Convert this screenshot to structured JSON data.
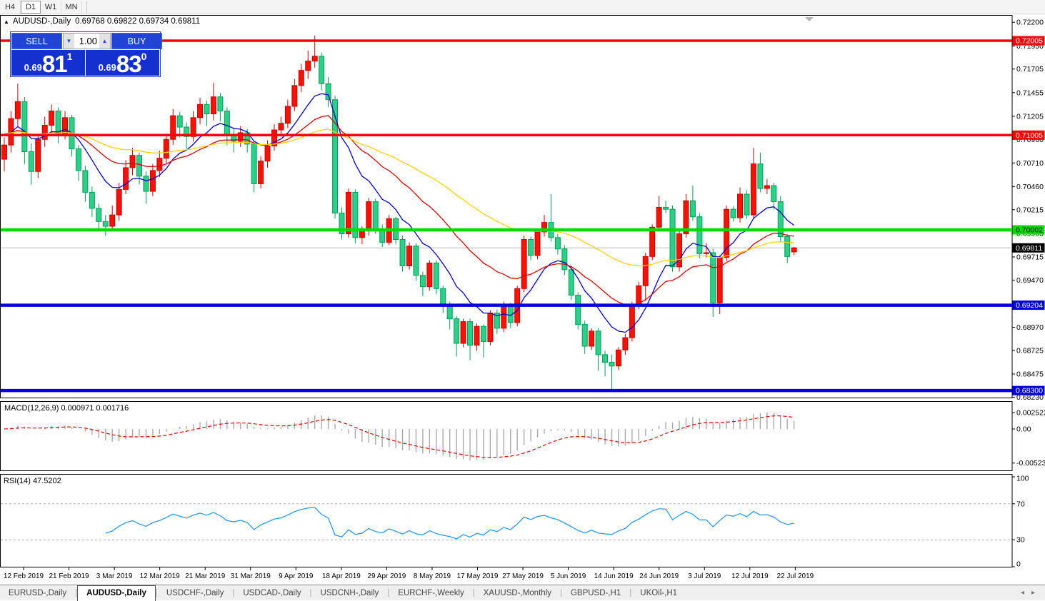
{
  "toolbar": {
    "timeframes": [
      {
        "label": "H4",
        "active": false
      },
      {
        "label": "D1",
        "active": true
      },
      {
        "label": "W1",
        "active": false
      },
      {
        "label": "MN",
        "active": false
      }
    ]
  },
  "header": {
    "collapse_icon": "▲",
    "symbol": "AUDUSD-,Daily",
    "ohlc_text": "0.69768 0.69822 0.69734 0.69811"
  },
  "trade_panel": {
    "sell_label": "SELL",
    "buy_label": "BUY",
    "volume": "1.00",
    "sell_price": {
      "small": "0.69",
      "big": "81",
      "sup": "1"
    },
    "buy_price": {
      "small": "0.69",
      "big": "83",
      "sup": "0"
    }
  },
  "colors": {
    "up_candle": "#f21507",
    "up_border": "#c80000",
    "down_candle": "#2ecf8b",
    "down_border": "#009e55",
    "ma_fast": "#0000cd",
    "ma_mid": "#d80000",
    "ma_slow": "#ffd300",
    "level_red": "#ff0000",
    "level_green": "#00dc00",
    "level_blue": "#0000e6",
    "bid_line": "#bbbbbb",
    "macd_bar": "#a9a9a9",
    "macd_signal": "#e00000",
    "rsi_line": "#1e90ff"
  },
  "chart_data": {
    "type": "candlestick",
    "symbol": "AUDUSD",
    "timeframe": "Daily",
    "price_axis_ticks": [
      "0.72200",
      "0.71950",
      "0.71705",
      "0.71455",
      "0.71205",
      "0.70960",
      "0.70710",
      "0.70460",
      "0.70215",
      "0.69965",
      "0.69715",
      "0.69470",
      "0.68970",
      "0.68725",
      "0.68475",
      "0.68230"
    ],
    "levels": [
      {
        "price": "0.72005",
        "value": 0.72005,
        "color": "red"
      },
      {
        "price": "0.71005",
        "value": 0.71005,
        "color": "red"
      },
      {
        "price": "0.70002",
        "value": 0.70002,
        "color": "green"
      },
      {
        "price": "0.69204",
        "value": 0.69204,
        "color": "blue"
      },
      {
        "price": "0.68300",
        "value": 0.683,
        "color": "blue"
      }
    ],
    "bid": {
      "price": "0.69811",
      "value": 0.69811
    },
    "date_ticks": [
      "12 Feb 2019",
      "21 Feb 2019",
      "3 Mar 2019",
      "12 Mar 2019",
      "21 Mar 2019",
      "31 Mar 2019",
      "9 Apr 2019",
      "18 Apr 2019",
      "29 Apr 2019",
      "8 May 2019",
      "17 May 2019",
      "27 May 2019",
      "5 Jun 2019",
      "14 Jun 2019",
      "24 Jun 2019",
      "3 Jul 2019",
      "12 Jul 2019",
      "22 Jul 2019"
    ],
    "moving_averages": [
      {
        "name": "fast",
        "period": 10,
        "method": "ema"
      },
      {
        "name": "mid",
        "period": 25,
        "method": "ema"
      },
      {
        "name": "slow",
        "period": 55,
        "method": "ema"
      }
    ],
    "candles": [
      [
        0.7075,
        0.7098,
        0.7062,
        0.709
      ],
      [
        0.709,
        0.7126,
        0.7082,
        0.7118
      ],
      [
        0.7118,
        0.7155,
        0.711,
        0.7136
      ],
      [
        0.7136,
        0.7141,
        0.707,
        0.7083
      ],
      [
        0.7083,
        0.7092,
        0.7048,
        0.7062
      ],
      [
        0.7062,
        0.7101,
        0.7055,
        0.7096
      ],
      [
        0.7096,
        0.712,
        0.7088,
        0.7111
      ],
      [
        0.7111,
        0.7133,
        0.7102,
        0.7126
      ],
      [
        0.7126,
        0.713,
        0.7092,
        0.7102
      ],
      [
        0.7102,
        0.7126,
        0.7096,
        0.7119
      ],
      [
        0.7119,
        0.7122,
        0.7078,
        0.7086
      ],
      [
        0.7086,
        0.709,
        0.7052,
        0.7063
      ],
      [
        0.7063,
        0.7068,
        0.703,
        0.704
      ],
      [
        0.704,
        0.7046,
        0.7014,
        0.7023
      ],
      [
        0.7023,
        0.7028,
        0.7,
        0.7009
      ],
      [
        0.7009,
        0.7016,
        0.6994,
        0.7004
      ],
      [
        0.7004,
        0.7026,
        0.6999,
        0.7016
      ],
      [
        0.7016,
        0.705,
        0.701,
        0.7043
      ],
      [
        0.7043,
        0.7074,
        0.7038,
        0.7066
      ],
      [
        0.7066,
        0.7087,
        0.7058,
        0.7079
      ],
      [
        0.7079,
        0.7082,
        0.7048,
        0.7057
      ],
      [
        0.7057,
        0.7062,
        0.7028,
        0.7041
      ],
      [
        0.7041,
        0.707,
        0.7036,
        0.7063
      ],
      [
        0.7063,
        0.7084,
        0.7056,
        0.7076
      ],
      [
        0.7076,
        0.7102,
        0.707,
        0.7096
      ],
      [
        0.7096,
        0.7128,
        0.709,
        0.7121
      ],
      [
        0.7121,
        0.7125,
        0.7098,
        0.7109
      ],
      [
        0.7109,
        0.7114,
        0.7086,
        0.7099
      ],
      [
        0.7099,
        0.7126,
        0.7094,
        0.7119
      ],
      [
        0.7119,
        0.714,
        0.7112,
        0.7133
      ],
      [
        0.7133,
        0.7137,
        0.711,
        0.7123
      ],
      [
        0.7123,
        0.7156,
        0.7116,
        0.7141
      ],
      [
        0.7141,
        0.7145,
        0.7115,
        0.7126
      ],
      [
        0.7126,
        0.713,
        0.709,
        0.7101
      ],
      [
        0.7101,
        0.7108,
        0.7082,
        0.7094
      ],
      [
        0.7094,
        0.711,
        0.7088,
        0.7103
      ],
      [
        0.7103,
        0.7107,
        0.7082,
        0.7091
      ],
      [
        0.7091,
        0.7094,
        0.704,
        0.7049
      ],
      [
        0.7049,
        0.7078,
        0.7044,
        0.7073
      ],
      [
        0.7073,
        0.7095,
        0.7066,
        0.7089
      ],
      [
        0.7089,
        0.7112,
        0.7084,
        0.7106
      ],
      [
        0.7106,
        0.712,
        0.7099,
        0.7113
      ],
      [
        0.7113,
        0.7138,
        0.7108,
        0.7131
      ],
      [
        0.7131,
        0.716,
        0.7126,
        0.7153
      ],
      [
        0.7153,
        0.7176,
        0.7146,
        0.7169
      ],
      [
        0.7169,
        0.719,
        0.716,
        0.7179
      ],
      [
        0.7179,
        0.7206,
        0.7172,
        0.7184
      ],
      [
        0.7184,
        0.7188,
        0.7148,
        0.7155
      ],
      [
        0.7155,
        0.7162,
        0.713,
        0.7138
      ],
      [
        0.7138,
        0.7142,
        0.7012,
        0.7018
      ],
      [
        0.7018,
        0.7024,
        0.699,
        0.6996
      ],
      [
        0.6996,
        0.7044,
        0.6992,
        0.704
      ],
      [
        0.704,
        0.7043,
        0.6986,
        0.6992
      ],
      [
        0.6992,
        0.7004,
        0.6985,
        0.6999
      ],
      [
        0.6999,
        0.7034,
        0.6994,
        0.703
      ],
      [
        0.703,
        0.7033,
        0.6996,
        0.7
      ],
      [
        0.7,
        0.7006,
        0.6982,
        0.6987
      ],
      [
        0.6987,
        0.7016,
        0.6984,
        0.7012
      ],
      [
        0.7012,
        0.7014,
        0.6985,
        0.699
      ],
      [
        0.699,
        0.6994,
        0.6956,
        0.6962
      ],
      [
        0.6962,
        0.6987,
        0.6958,
        0.6983
      ],
      [
        0.6983,
        0.6986,
        0.6946,
        0.6952
      ],
      [
        0.6952,
        0.6956,
        0.693,
        0.694
      ],
      [
        0.694,
        0.6968,
        0.6936,
        0.6965
      ],
      [
        0.6965,
        0.6968,
        0.6932,
        0.6938
      ],
      [
        0.6938,
        0.6941,
        0.6912,
        0.692
      ],
      [
        0.692,
        0.6924,
        0.6895,
        0.6906
      ],
      [
        0.6906,
        0.6909,
        0.6866,
        0.688
      ],
      [
        0.688,
        0.6906,
        0.6876,
        0.6903
      ],
      [
        0.6903,
        0.6906,
        0.6862,
        0.6878
      ],
      [
        0.6878,
        0.6901,
        0.6872,
        0.6898
      ],
      [
        0.6898,
        0.69,
        0.6865,
        0.6882
      ],
      [
        0.6882,
        0.6915,
        0.6878,
        0.6912
      ],
      [
        0.6912,
        0.6916,
        0.689,
        0.6896
      ],
      [
        0.6896,
        0.6924,
        0.6892,
        0.692
      ],
      [
        0.692,
        0.6923,
        0.6896,
        0.6902
      ],
      [
        0.6902,
        0.6941,
        0.6898,
        0.6938
      ],
      [
        0.6938,
        0.6994,
        0.6934,
        0.699
      ],
      [
        0.699,
        0.6993,
        0.6968,
        0.6973
      ],
      [
        0.6973,
        0.7001,
        0.6969,
        0.6998
      ],
      [
        0.6998,
        0.7016,
        0.6993,
        0.7008
      ],
      [
        0.7008,
        0.7038,
        0.6988,
        0.6992
      ],
      [
        0.6992,
        0.6996,
        0.6974,
        0.698
      ],
      [
        0.698,
        0.6984,
        0.6952,
        0.6958
      ],
      [
        0.6958,
        0.6962,
        0.6926,
        0.6931
      ],
      [
        0.6931,
        0.6934,
        0.6895,
        0.69
      ],
      [
        0.69,
        0.6904,
        0.6869,
        0.6877
      ],
      [
        0.6877,
        0.6896,
        0.6873,
        0.6893
      ],
      [
        0.6893,
        0.6896,
        0.6851,
        0.6868
      ],
      [
        0.6868,
        0.6872,
        0.6845,
        0.686
      ],
      [
        0.686,
        0.6868,
        0.683,
        0.6856
      ],
      [
        0.6856,
        0.6876,
        0.6852,
        0.6873
      ],
      [
        0.6873,
        0.689,
        0.6868,
        0.6886
      ],
      [
        0.6886,
        0.6924,
        0.6882,
        0.692
      ],
      [
        0.692,
        0.6945,
        0.6916,
        0.6941
      ],
      [
        0.6941,
        0.6976,
        0.6925,
        0.6972
      ],
      [
        0.6972,
        0.7006,
        0.6968,
        0.7003
      ],
      [
        0.7003,
        0.7036,
        0.6999,
        0.7024
      ],
      [
        0.7024,
        0.7031,
        0.7018,
        0.7022
      ],
      [
        0.7022,
        0.7026,
        0.6956,
        0.6961
      ],
      [
        0.6961,
        0.6999,
        0.6956,
        0.6996
      ],
      [
        0.6996,
        0.7038,
        0.6992,
        0.7031
      ],
      [
        0.7031,
        0.7047,
        0.701,
        0.7014
      ],
      [
        0.7014,
        0.7018,
        0.697,
        0.6975
      ],
      [
        0.6975,
        0.6986,
        0.6971,
        0.6976
      ],
      [
        0.6976,
        0.698,
        0.6908,
        0.6923
      ],
      [
        0.6923,
        0.6973,
        0.6911,
        0.6971
      ],
      [
        0.6971,
        0.7026,
        0.6967,
        0.7022
      ],
      [
        0.7022,
        0.7025,
        0.7009,
        0.7013
      ],
      [
        0.7013,
        0.7045,
        0.7008,
        0.7038
      ],
      [
        0.7038,
        0.7042,
        0.7012,
        0.7016
      ],
      [
        0.7016,
        0.7087,
        0.7012,
        0.707
      ],
      [
        0.707,
        0.7082,
        0.704,
        0.7044
      ],
      [
        0.7044,
        0.7054,
        0.7038,
        0.7047
      ],
      [
        0.7047,
        0.705,
        0.7022,
        0.703
      ],
      [
        0.703,
        0.7036,
        0.6988,
        0.6993
      ],
      [
        0.6993,
        0.6996,
        0.6965,
        0.6972
      ],
      [
        0.69768,
        0.69822,
        0.69734,
        0.69811
      ]
    ]
  },
  "macd": {
    "label": "MACD(12,26,9) 0.000971 0.001716",
    "params": [
      12,
      26,
      9
    ],
    "main_value": "0.000971",
    "signal_value": "0.001716",
    "axis_ticks": [
      {
        "label": "0.002522",
        "value": 0.002522
      },
      {
        "label": "0.00",
        "value": 0
      },
      {
        "label": "-0.005234",
        "value": -0.005234
      }
    ]
  },
  "rsi": {
    "label": "RSI(14) 47.5202",
    "period": 14,
    "value": "47.5202",
    "axis_ticks": [
      {
        "label": "100",
        "value": 100
      },
      {
        "label": "70",
        "value": 70
      },
      {
        "label": "30",
        "value": 30
      },
      {
        "label": "0",
        "value": 0
      }
    ],
    "guides": [
      70,
      30
    ]
  },
  "tabs": {
    "items": [
      {
        "label": "EURUSD-,Daily",
        "active": false
      },
      {
        "label": "AUDUSD-,Daily",
        "active": true
      },
      {
        "label": "USDCHF-,Daily",
        "active": false
      },
      {
        "label": "USDCAD-,Daily",
        "active": false
      },
      {
        "label": "USDCNH-,Daily",
        "active": false
      },
      {
        "label": "EURCHF-,Weekly",
        "active": false
      },
      {
        "label": "XAUUSD-,Monthly",
        "active": false
      },
      {
        "label": "GBPUSD-,H1",
        "active": false
      },
      {
        "label": "UKOil-,H1",
        "active": false
      }
    ],
    "scroll_left": "◂",
    "scroll_right": "▸"
  }
}
